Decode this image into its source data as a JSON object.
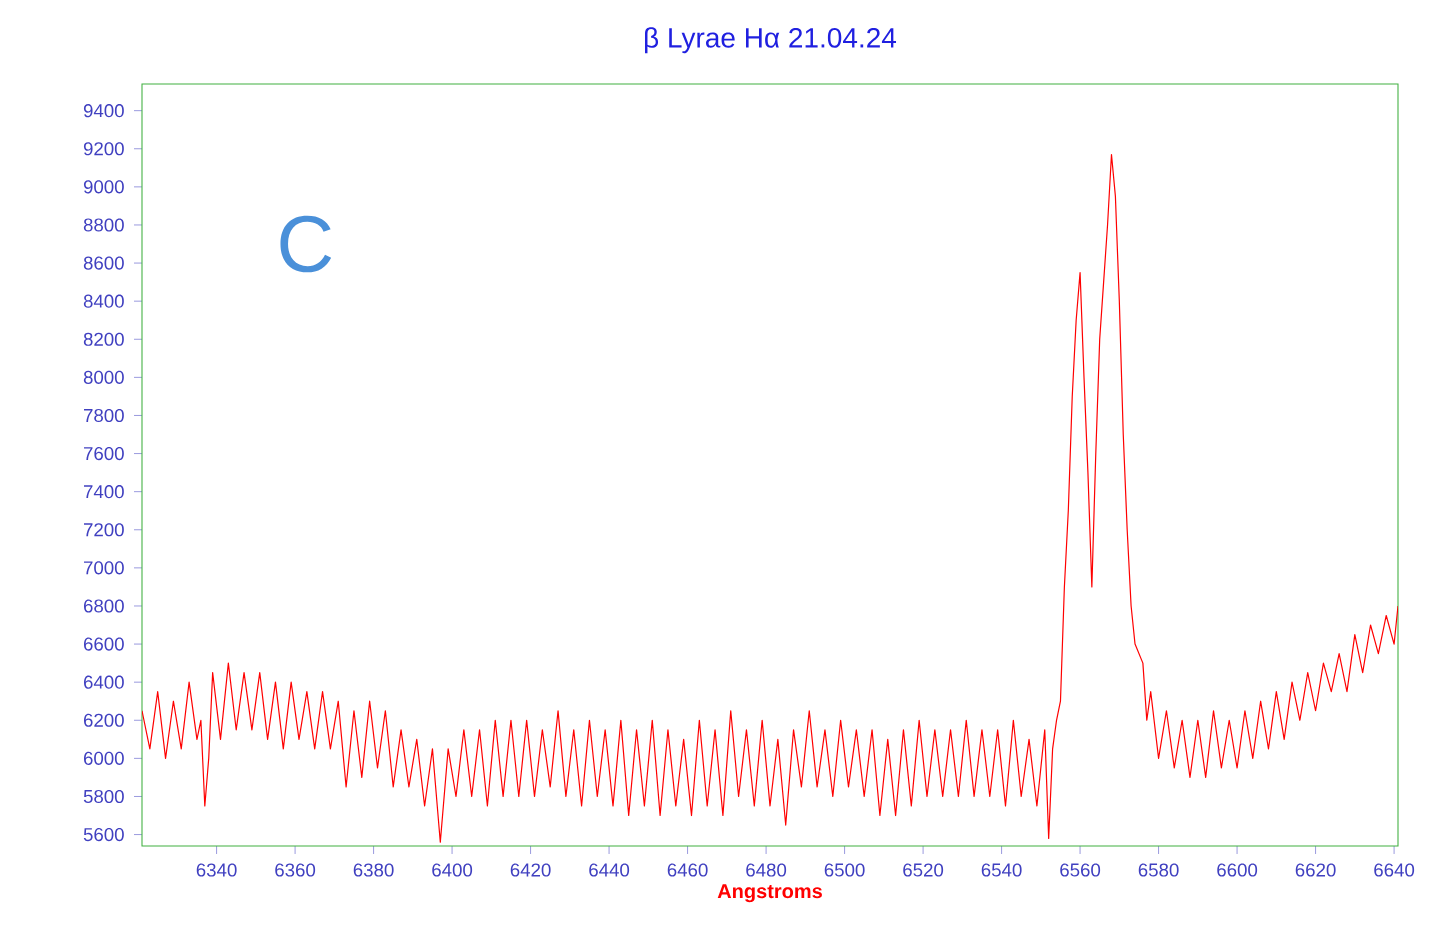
{
  "chart_data": {
    "type": "line",
    "title": "β Lyrae Hα 21.04.24",
    "xlabel": "Angstroms",
    "annotations": [
      "C"
    ],
    "xlim": [
      6321,
      6641
    ],
    "ylim": [
      5540,
      9540
    ],
    "xticks": [
      6340,
      6360,
      6380,
      6400,
      6420,
      6440,
      6460,
      6480,
      6500,
      6520,
      6540,
      6560,
      6580,
      6600,
      6620,
      6640
    ],
    "yticks": [
      5600,
      5800,
      6000,
      6200,
      6400,
      6600,
      6800,
      7000,
      7200,
      7400,
      7600,
      7800,
      8000,
      8200,
      8400,
      8600,
      8800,
      9000,
      9200,
      9400
    ],
    "grid": false,
    "marker": "none",
    "line_style": "solid",
    "series": [
      {
        "color": "#ff0000",
        "x": [
          6321,
          6323,
          6325,
          6327,
          6329,
          6331,
          6333,
          6335,
          6336,
          6337,
          6338,
          6339,
          6341,
          6343,
          6345,
          6347,
          6349,
          6351,
          6353,
          6355,
          6357,
          6359,
          6361,
          6363,
          6365,
          6367,
          6369,
          6371,
          6373,
          6375,
          6377,
          6379,
          6381,
          6383,
          6385,
          6387,
          6389,
          6391,
          6393,
          6395,
          6397,
          6399,
          6401,
          6403,
          6405,
          6407,
          6409,
          6411,
          6413,
          6415,
          6417,
          6419,
          6421,
          6423,
          6425,
          6427,
          6429,
          6431,
          6433,
          6435,
          6437,
          6439,
          6441,
          6443,
          6445,
          6447,
          6449,
          6451,
          6453,
          6455,
          6457,
          6459,
          6461,
          6463,
          6465,
          6467,
          6469,
          6471,
          6473,
          6475,
          6477,
          6479,
          6481,
          6483,
          6485,
          6487,
          6489,
          6491,
          6493,
          6495,
          6497,
          6499,
          6501,
          6503,
          6505,
          6507,
          6509,
          6511,
          6513,
          6515,
          6517,
          6519,
          6521,
          6523,
          6525,
          6527,
          6529,
          6531,
          6533,
          6535,
          6537,
          6539,
          6541,
          6543,
          6545,
          6547,
          6549,
          6551,
          6552,
          6553,
          6554,
          6555,
          6556,
          6557,
          6558,
          6559,
          6560,
          6561,
          6562,
          6563,
          6564,
          6565,
          6566,
          6567,
          6568,
          6569,
          6570,
          6571,
          6572,
          6573,
          6574,
          6576,
          6577,
          6578,
          6580,
          6582,
          6584,
          6586,
          6588,
          6590,
          6592,
          6594,
          6596,
          6598,
          6600,
          6602,
          6604,
          6606,
          6608,
          6610,
          6612,
          6614,
          6616,
          6618,
          6620,
          6622,
          6624,
          6626,
          6628,
          6630,
          6632,
          6634,
          6636,
          6638,
          6640,
          6641
        ],
        "values": [
          6250,
          6050,
          6350,
          6000,
          6300,
          6050,
          6400,
          6100,
          6200,
          5750,
          6000,
          6450,
          6100,
          6500,
          6150,
          6450,
          6150,
          6450,
          6100,
          6400,
          6050,
          6400,
          6100,
          6350,
          6050,
          6350,
          6050,
          6300,
          5850,
          6250,
          5900,
          6300,
          5950,
          6250,
          5850,
          6150,
          5850,
          6100,
          5750,
          6050,
          5560,
          6050,
          5800,
          6150,
          5800,
          6150,
          5750,
          6200,
          5800,
          6200,
          5800,
          6200,
          5800,
          6150,
          5850,
          6250,
          5800,
          6150,
          5750,
          6200,
          5800,
          6150,
          5750,
          6200,
          5700,
          6150,
          5750,
          6200,
          5700,
          6150,
          5750,
          6100,
          5700,
          6200,
          5750,
          6150,
          5700,
          6250,
          5800,
          6150,
          5750,
          6200,
          5750,
          6100,
          5650,
          6150,
          5850,
          6250,
          5850,
          6150,
          5800,
          6200,
          5850,
          6150,
          5800,
          6150,
          5700,
          6100,
          5700,
          6150,
          5750,
          6200,
          5800,
          6150,
          5800,
          6150,
          5800,
          6200,
          5800,
          6150,
          5800,
          6150,
          5750,
          6200,
          5800,
          6100,
          5750,
          6150,
          5580,
          6050,
          6200,
          6300,
          6900,
          7300,
          7900,
          8300,
          8550,
          8000,
          7500,
          6900,
          7600,
          8200,
          8500,
          8800,
          9170,
          8950,
          8400,
          7700,
          7200,
          6800,
          6600,
          6500,
          6200,
          6350,
          6000,
          6250,
          5950,
          6200,
          5900,
          6200,
          5900,
          6250,
          5950,
          6200,
          5950,
          6250,
          6000,
          6300,
          6050,
          6350,
          6100,
          6400,
          6200,
          6450,
          6250,
          6500,
          6350,
          6550,
          6350,
          6650,
          6450,
          6700,
          6550,
          6750,
          6600,
          6800
        ]
      }
    ]
  }
}
